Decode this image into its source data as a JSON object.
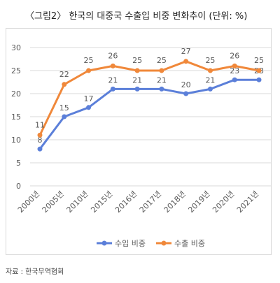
{
  "title": "〈그림2〉 한국의 대중국 수출입 비중 변화추이 (단위: %)",
  "source": "자료 : 한국무역협회",
  "chart_data": {
    "type": "line",
    "categories": [
      "2000년",
      "2005년",
      "2010년",
      "2015년",
      "2016년",
      "2017년",
      "2018년",
      "2019년",
      "2020년",
      "2021년"
    ],
    "series": [
      {
        "name": "수입 비중",
        "color": "#5b7fd9",
        "values": [
          8,
          15,
          17,
          21,
          21,
          21,
          20,
          21,
          23,
          23
        ]
      },
      {
        "name": "수출 비중",
        "color": "#f0883a",
        "values": [
          11,
          22,
          25,
          26,
          25,
          25,
          27,
          25,
          26,
          25
        ]
      }
    ],
    "ylim": [
      0,
      30
    ],
    "yticks": [
      0,
      5,
      10,
      15,
      20,
      25,
      30
    ],
    "grid": true,
    "legend": "bottom"
  }
}
